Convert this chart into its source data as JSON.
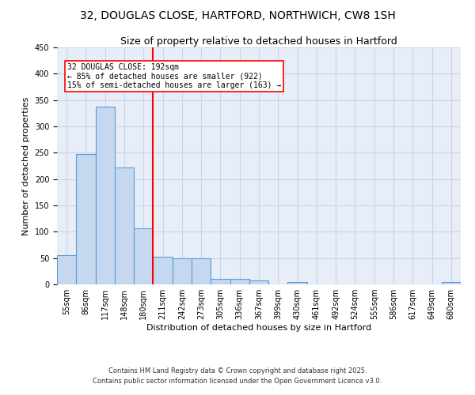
{
  "title1": "32, DOUGLAS CLOSE, HARTFORD, NORTHWICH, CW8 1SH",
  "title2": "Size of property relative to detached houses in Hartford",
  "xlabel": "Distribution of detached houses by size in Hartford",
  "ylabel": "Number of detached properties",
  "bin_labels": [
    "55sqm",
    "86sqm",
    "117sqm",
    "148sqm",
    "180sqm",
    "211sqm",
    "242sqm",
    "273sqm",
    "305sqm",
    "336sqm",
    "367sqm",
    "399sqm",
    "430sqm",
    "461sqm",
    "492sqm",
    "524sqm",
    "555sqm",
    "586sqm",
    "617sqm",
    "649sqm",
    "680sqm"
  ],
  "bar_heights": [
    55,
    247,
    337,
    222,
    107,
    52,
    50,
    49,
    10,
    10,
    7,
    0,
    4,
    0,
    0,
    0,
    0,
    0,
    0,
    0,
    4
  ],
  "bar_color": "#c5d8f0",
  "bar_edge_color": "#5b9bd5",
  "grid_color": "#c8d4e8",
  "bg_color": "#e8eef8",
  "red_line_x": 4.5,
  "annotation_text_line1": "32 DOUGLAS CLOSE: 192sqm",
  "annotation_text_line2": "← 85% of detached houses are smaller (922)",
  "annotation_text_line3": "15% of semi-detached houses are larger (163) →",
  "ylim": [
    0,
    450
  ],
  "yticks": [
    0,
    50,
    100,
    150,
    200,
    250,
    300,
    350,
    400,
    450
  ],
  "title_fontsize": 10,
  "subtitle_fontsize": 9,
  "axis_label_fontsize": 8,
  "tick_fontsize": 7,
  "annot_fontsize": 7,
  "footnote1": "Contains HM Land Registry data © Crown copyright and database right 2025.",
  "footnote2": "Contains public sector information licensed under the Open Government Licence v3.0."
}
